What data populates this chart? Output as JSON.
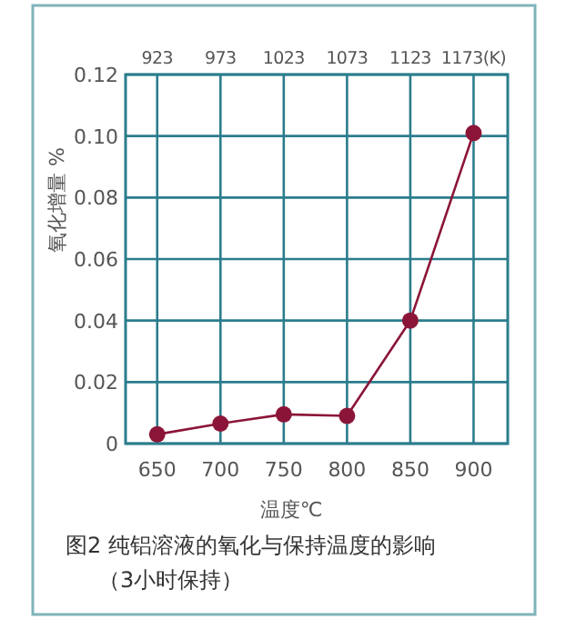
{
  "chart_data": {
    "type": "line",
    "xlabel": "温度℃",
    "ylabel": "氧化增量 %",
    "x": [
      650,
      700,
      750,
      800,
      850,
      900
    ],
    "series": [
      {
        "color": "#8b1538",
        "values": [
          0.003,
          0.0065,
          0.0095,
          0.009,
          0.04,
          0.101
        ]
      }
    ],
    "xlim": [
      625,
      927
    ],
    "xticks": [
      650,
      700,
      750,
      800,
      850,
      900
    ],
    "x2lim": [
      898,
      1200
    ],
    "x2ticks": [
      923,
      973,
      1023,
      1073,
      1123,
      {
        "value": 1173,
        "label": "1173(K)"
      }
    ],
    "ylim": [
      0,
      0.12
    ],
    "yticks": [
      0,
      0.02,
      0.04,
      0.06,
      0.08,
      {
        "value": 0.1,
        "label": "0.10"
      },
      0.12
    ],
    "grid": true,
    "marker": "circle",
    "line_style": "solid",
    "annotations": [
      "图2 纯铝溶液的氧化与保持温度的影响",
      "（3小时保持）"
    ]
  }
}
